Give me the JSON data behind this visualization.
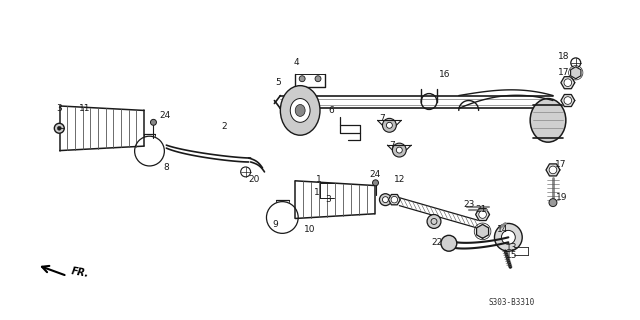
{
  "bg_color": "#ffffff",
  "fig_width": 6.4,
  "fig_height": 3.2,
  "dpi": 100,
  "diagram_code": "S303-B3310",
  "line_color": "#1a1a1a",
  "label_fontsize": 6.5,
  "diagram_code_fontsize": 5.5
}
